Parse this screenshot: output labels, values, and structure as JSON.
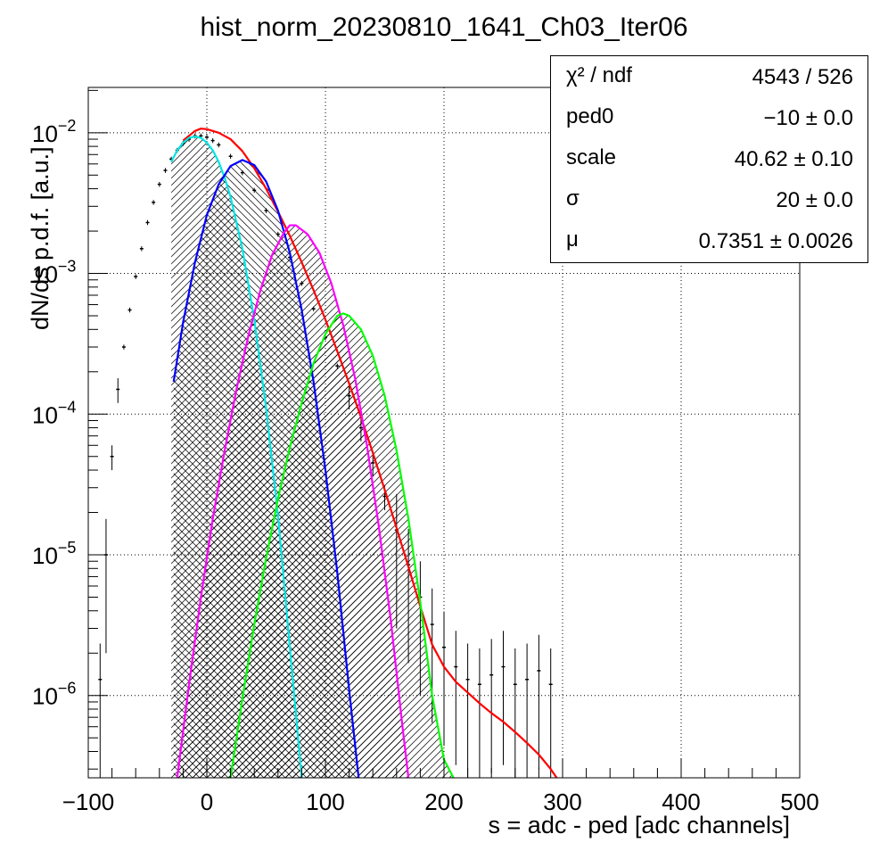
{
  "title": "hist_norm_20230810_1641_Ch03_Iter06",
  "xlabel": "s = adc - ped [adc channels]",
  "ylabel": "dN/ds p.d.f. [a.u.]",
  "stats": {
    "rows": [
      {
        "key": "χ² / ndf",
        "value": "4543 / 526"
      },
      {
        "key": "ped0",
        "value": "−10 ± 0.0"
      },
      {
        "key": "scale",
        "value": "40.62 ± 0.10"
      },
      {
        "key": "σ",
        "value": "20 ± 0.0"
      },
      {
        "key": "μ",
        "value": "0.7351 ± 0.0026"
      }
    ]
  },
  "chart_data": {
    "type": "line",
    "title": "hist_norm_20230810_1641_Ch03_Iter06",
    "xlabel": "s = adc - ped [adc channels]",
    "ylabel": "dN/ds p.d.f. [a.u.]",
    "xlim": [
      -100,
      500
    ],
    "ylim": [
      2.6e-07,
      0.021
    ],
    "yscale": "log",
    "grid": true,
    "x_ticks": [
      "−100",
      "0",
      "100",
      "200",
      "300",
      "400",
      "500"
    ],
    "y_ticks": [
      {
        "value": 0.01,
        "base": "10",
        "exp": "−2"
      },
      {
        "value": 0.001,
        "base": "10",
        "exp": "−3"
      },
      {
        "value": 0.0001,
        "base": "10",
        "exp": "−4"
      },
      {
        "value": 1e-05,
        "base": "10",
        "exp": "−5"
      },
      {
        "value": 1e-06,
        "base": "10",
        "exp": "−6"
      }
    ],
    "histogram": {
      "color": "#000000",
      "x": [
        -90,
        -85,
        -80,
        -75,
        -70,
        -65,
        -60,
        -55,
        -50,
        -45,
        -40,
        -35,
        -30,
        -25,
        -20,
        -15,
        -10,
        -5,
        0,
        5,
        10,
        20,
        30,
        40,
        50,
        60,
        70,
        80,
        90,
        100,
        110,
        120,
        130,
        140,
        150,
        160,
        170,
        180,
        190,
        200,
        210,
        220,
        230,
        240,
        250,
        260,
        270,
        280,
        290
      ],
      "y": [
        1.3e-06,
        1e-05,
        5e-05,
        0.00015,
        0.0003,
        0.00055,
        0.00095,
        0.0015,
        0.0023,
        0.0032,
        0.0043,
        0.0054,
        0.0065,
        0.0075,
        0.0084,
        0.009,
        0.0095,
        0.0095,
        0.0093,
        0.0088,
        0.0082,
        0.0068,
        0.0052,
        0.0039,
        0.0028,
        0.0019,
        0.0013,
        0.00085,
        0.00056,
        0.00035,
        0.00022,
        0.000135,
        8e-05,
        4.5e-05,
        2.6e-05,
        1.5e-05,
        8.5e-06,
        5e-06,
        3.2e-06,
        2.2e-06,
        1.6e-06,
        1.3e-06,
        1.2e-06,
        1.4e-06,
        1.6e-06,
        1.2e-06,
        1.3e-06,
        1.5e-06,
        1.2e-06
      ]
    },
    "series": [
      {
        "name": "",
        "color": "#ff0000",
        "fill": "none",
        "x": [
          -20,
          -10,
          -5,
          0,
          10,
          20,
          30,
          40,
          50,
          60,
          70,
          80,
          90,
          100,
          110,
          120,
          130,
          140,
          150,
          160,
          170,
          180,
          190,
          200,
          210,
          220,
          230,
          240,
          250,
          260,
          270,
          280,
          290,
          295
        ],
        "y": [
          0.0088,
          0.0103,
          0.0107,
          0.0106,
          0.01,
          0.009,
          0.0074,
          0.0056,
          0.004,
          0.00275,
          0.00185,
          0.0012,
          0.00076,
          0.00047,
          0.00028,
          0.000165,
          9.5e-05,
          5.3e-05,
          2.9e-05,
          1.55e-05,
          8.2e-06,
          4.3e-06,
          2.3e-06,
          1.6e-06,
          1.25e-06,
          1.05e-06,
          8.8e-07,
          7.5e-07,
          6.5e-07,
          5.5e-07,
          4.6e-07,
          3.8e-07,
          3e-07,
          2.6e-07
        ]
      },
      {
        "name": "",
        "color": "#00e5e5",
        "fill": "#00e5e5",
        "x": [
          -30,
          -25,
          -20,
          -15,
          -10,
          -5,
          0,
          5,
          10,
          15,
          20,
          30,
          40,
          50,
          60,
          70,
          80
        ],
        "y": [
          0.0062,
          0.0075,
          0.0085,
          0.0092,
          0.0094,
          0.0092,
          0.0085,
          0.0075,
          0.0062,
          0.0048,
          0.0035,
          0.0015,
          0.00047,
          0.00011,
          1.9e-05,
          2.2e-06,
          2.6e-07
        ]
      },
      {
        "name": "",
        "color": "#0000ff",
        "fill": "#0000ff",
        "x": [
          -28,
          -20,
          -10,
          0,
          10,
          20,
          30,
          40,
          50,
          60,
          70,
          80,
          90,
          100,
          110,
          120,
          128
        ],
        "y": [
          0.00017,
          0.00045,
          0.0012,
          0.0026,
          0.0043,
          0.0058,
          0.0064,
          0.0059,
          0.0045,
          0.0028,
          0.0014,
          0.00055,
          0.00017,
          4e-05,
          7.5e-06,
          1.1e-06,
          2.6e-07
        ]
      },
      {
        "name": "",
        "color": "#ff00ff",
        "fill": "#ff00ff",
        "x": [
          -25,
          -15,
          -5,
          5,
          15,
          25,
          35,
          45,
          55,
          65,
          70,
          75,
          85,
          95,
          105,
          115,
          125,
          135,
          145,
          155,
          165,
          170
        ],
        "y": [
          2.6e-07,
          1.2e-06,
          5e-06,
          1.8e-05,
          5.5e-05,
          0.00015,
          0.00036,
          0.00075,
          0.00135,
          0.00195,
          0.0022,
          0.0022,
          0.0019,
          0.0014,
          0.00085,
          0.00043,
          0.00018,
          6e-05,
          1.6e-05,
          3.5e-06,
          6e-07,
          2.6e-07
        ]
      },
      {
        "name": "",
        "color": "#00ff00",
        "fill": "#00ff00",
        "x": [
          20,
          30,
          40,
          50,
          60,
          70,
          80,
          90,
          100,
          110,
          115,
          120,
          130,
          140,
          150,
          160,
          170,
          180,
          190,
          200,
          208
        ],
        "y": [
          2.6e-07,
          9.5e-07,
          3.2e-06,
          9.5e-06,
          2.5e-05,
          5.8e-05,
          0.00012,
          0.00023,
          0.00037,
          0.0005,
          0.00052,
          0.0005,
          0.0004,
          0.00026,
          0.000135,
          5.5e-05,
          1.8e-05,
          4.6e-06,
          1e-06,
          3.5e-07,
          2.6e-07
        ]
      }
    ]
  }
}
